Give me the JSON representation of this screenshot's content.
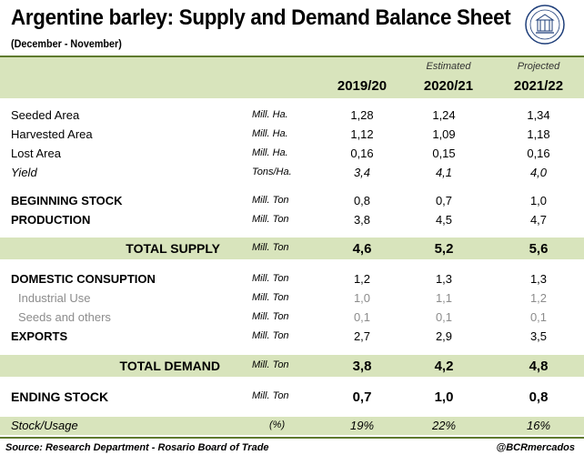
{
  "header": {
    "title": "Argentine barley: Supply and Demand Balance Sheet",
    "subtitle": "(December - November)",
    "logo_icon": "bcr-seal-icon"
  },
  "columns": [
    {
      "note": "",
      "label": "2019/20"
    },
    {
      "note": "Estimated",
      "label": "2020/21"
    },
    {
      "note": "Projected",
      "label": "2021/22"
    }
  ],
  "rows": [
    {
      "label": "Seeded Area",
      "unit": "Mill. Ha.",
      "values": [
        "1,28",
        "1,24",
        "1,34"
      ]
    },
    {
      "label": "Harvested Area",
      "unit": "Mill. Ha.",
      "values": [
        "1,12",
        "1,09",
        "1,18"
      ]
    },
    {
      "label": "Lost Area",
      "unit": "Mill. Ha.",
      "values": [
        "0,16",
        "0,15",
        "0,16"
      ]
    },
    {
      "label": "Yield",
      "unit": "Tons/Ha.",
      "values": [
        "3,4",
        "4,1",
        "4,0"
      ]
    },
    {
      "label": "BEGINNING STOCK",
      "unit": "Mill. Ton",
      "values": [
        "0,8",
        "0,7",
        "1,0"
      ]
    },
    {
      "label": "PRODUCTION",
      "unit": "Mill. Ton",
      "values": [
        "3,8",
        "4,5",
        "4,7"
      ]
    },
    {
      "label": "TOTAL SUPPLY",
      "unit": "Mill. Ton",
      "values": [
        "4,6",
        "5,2",
        "5,6"
      ]
    },
    {
      "label": "DOMESTIC CONSUPTION",
      "unit": "Mill. Ton",
      "values": [
        "1,2",
        "1,3",
        "1,3"
      ]
    },
    {
      "label": "Industrial Use",
      "unit": "Mill. Ton",
      "values": [
        "1,0",
        "1,1",
        "1,2"
      ]
    },
    {
      "label": "Seeds and others",
      "unit": "Mill. Ton",
      "values": [
        "0,1",
        "0,1",
        "0,1"
      ]
    },
    {
      "label": "EXPORTS",
      "unit": "Mill. Ton",
      "values": [
        "2,7",
        "2,9",
        "3,5"
      ]
    },
    {
      "label": "TOTAL DEMAND",
      "unit": "Mill. Ton",
      "values": [
        "3,8",
        "4,2",
        "4,8"
      ]
    },
    {
      "label": "ENDING STOCK",
      "unit": "Mill. Ton",
      "values": [
        "0,7",
        "1,0",
        "0,8"
      ]
    },
    {
      "label": "Stock/Usage",
      "unit": "(%)",
      "values": [
        "19%",
        "22%",
        "16%"
      ]
    }
  ],
  "footer": {
    "source": "Source: Research Department - Rosario Board of Trade",
    "handle": "@BCRmercados"
  },
  "colors": {
    "band": "#d8e4bc",
    "rule": "#5f7a2e",
    "muted": "#8c8c8c"
  }
}
